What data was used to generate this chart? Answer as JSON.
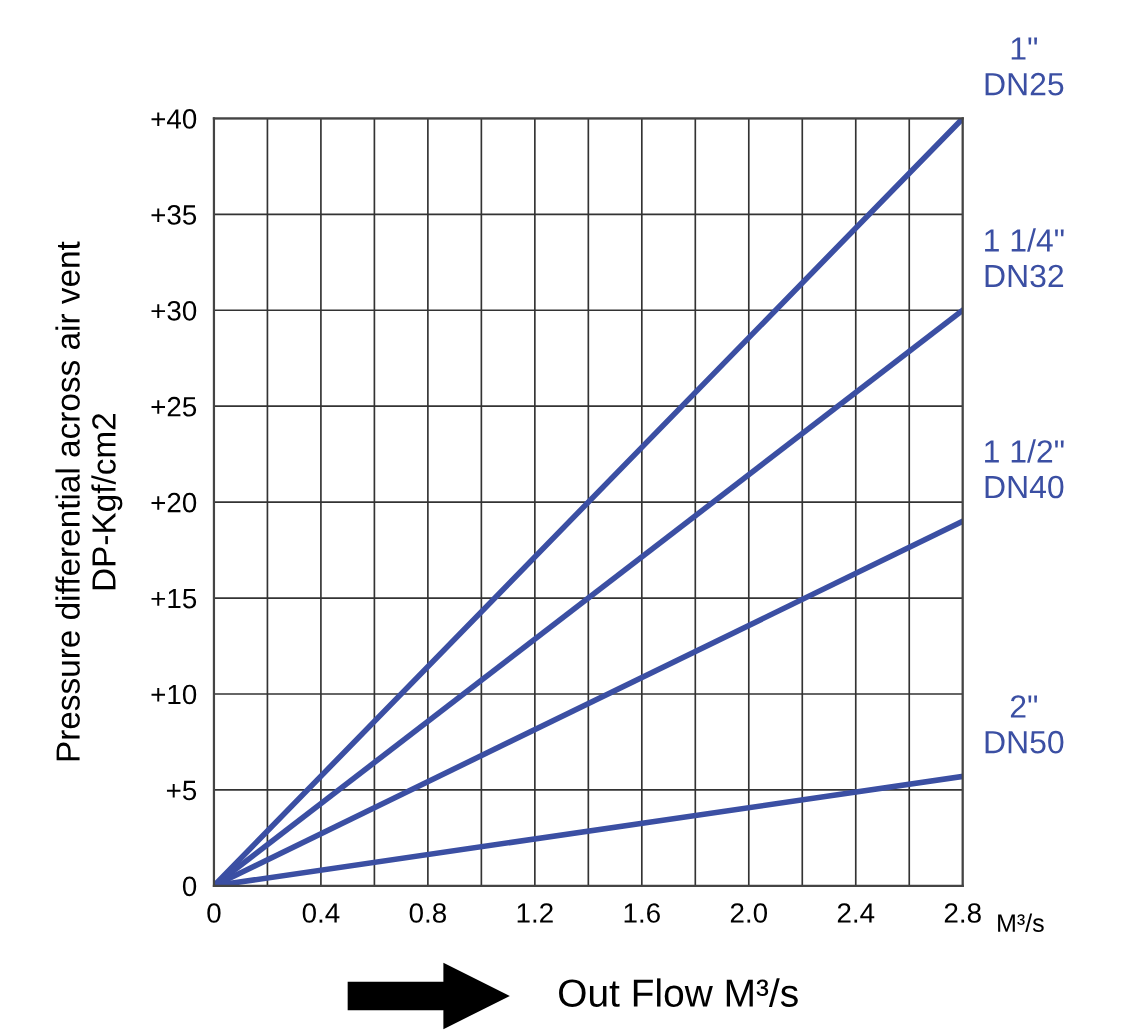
{
  "chart_data": {
    "type": "line",
    "xlabel": "Out Flow M³/s",
    "ylabel": "Pressure differential across air vent\nDP-Kgf/cm2",
    "annotations": [
      "M³/s"
    ],
    "xlim": [
      0,
      2.8
    ],
    "ylim": [
      0,
      40
    ],
    "xticks": [
      0,
      {
        "value": 0.2,
        "label": null
      },
      0.4,
      {
        "value": 0.6,
        "label": null
      },
      0.8,
      {
        "value": 1.0,
        "label": null
      },
      1.2,
      {
        "value": 1.4,
        "label": null
      },
      1.6,
      {
        "value": 1.8,
        "label": null
      },
      {
        "value": 2,
        "label": "2.0"
      },
      {
        "value": 2.2,
        "label": null
      },
      2.4,
      {
        "value": 2.6,
        "label": null
      },
      2.8
    ],
    "yticks": [
      0,
      {
        "value": 5,
        "label": "+5"
      },
      {
        "value": 10,
        "label": "+10"
      },
      {
        "value": 15,
        "label": "+15"
      },
      {
        "value": 20,
        "label": "+20"
      },
      {
        "value": 25,
        "label": "+25"
      },
      {
        "value": 30,
        "label": "+30"
      },
      {
        "value": 35,
        "label": "+35"
      },
      {
        "value": 40,
        "label": "+40"
      }
    ],
    "grid": true,
    "legend": false,
    "marker": "none",
    "line_style": "solid",
    "x": [
      0,
      2.8
    ],
    "series": [
      {
        "name": "1\"\nDN25",
        "color": "#3b4fa3",
        "values": [
          0,
          40
        ]
      },
      {
        "name": "1 1/4\"\nDN32",
        "color": "#3b4fa3",
        "values": [
          0,
          30
        ]
      },
      {
        "name": "1 1/2\"\nDN40",
        "color": "#3b4fa3",
        "values": [
          0,
          19
        ]
      },
      {
        "name": "2\"\nDN50",
        "color": "#3b4fa3",
        "values": [
          0,
          5.7
        ]
      }
    ]
  }
}
